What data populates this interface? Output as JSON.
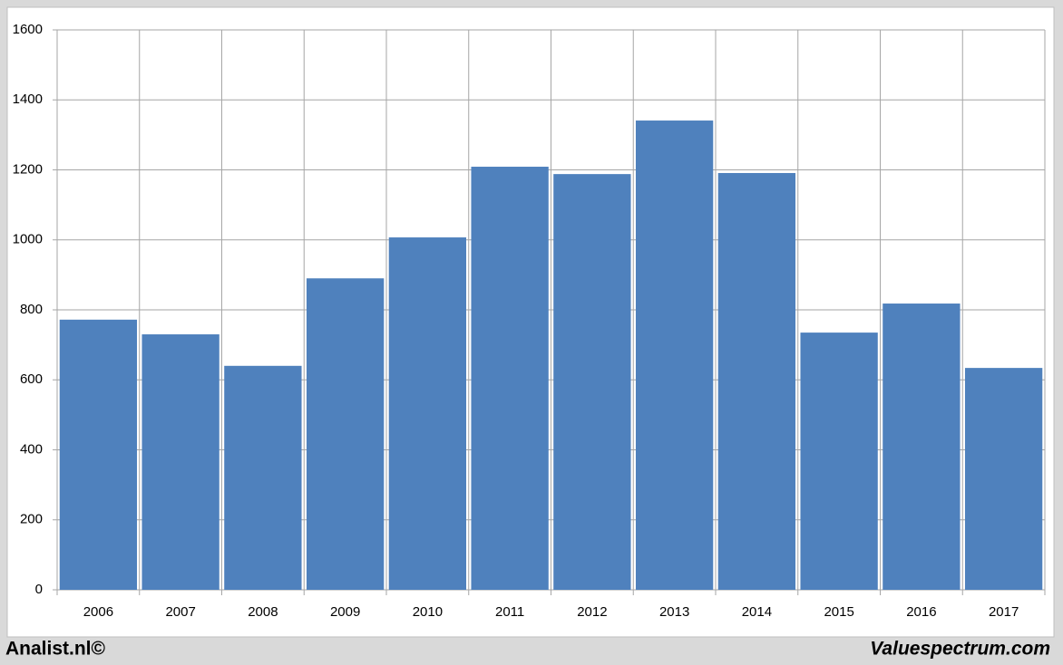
{
  "chart_data": {
    "type": "bar",
    "categories": [
      "2006",
      "2007",
      "2008",
      "2009",
      "2010",
      "2011",
      "2012",
      "2013",
      "2014",
      "2015",
      "2016",
      "2017"
    ],
    "values": [
      772,
      730,
      640,
      890,
      1007,
      1209,
      1188,
      1341,
      1191,
      735,
      818,
      634
    ],
    "color": "#4f81bd",
    "ylim": [
      0,
      1600
    ],
    "yticks": [
      0,
      200,
      400,
      600,
      800,
      1000,
      1200,
      1400,
      1600
    ],
    "grid": true
  },
  "footer": {
    "left": "Analist.nl©",
    "right": "Valuespectrum.com"
  }
}
